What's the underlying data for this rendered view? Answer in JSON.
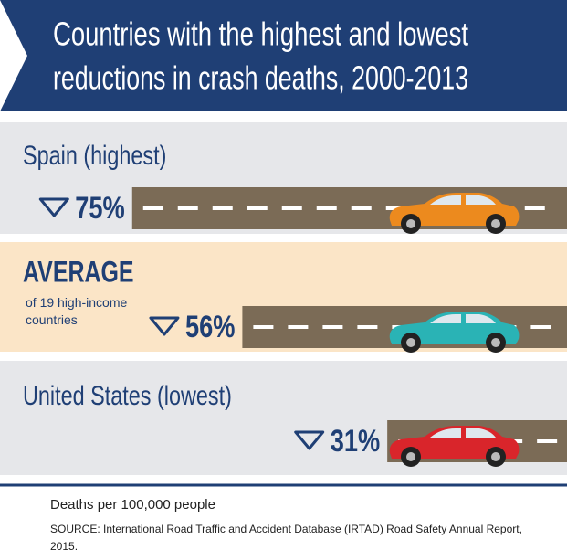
{
  "chart_data": {
    "type": "bar",
    "title_lines": [
      "Countries with the highest and lowest",
      "reductions in crash deaths, 2000-2013"
    ],
    "categories": [
      "Spain (highest)",
      "AVERAGE",
      "United States (lowest)"
    ],
    "category_note": "of 19 high-income countries",
    "values": [
      75,
      56,
      31
    ],
    "value_labels": [
      "75%",
      "56%",
      "31%"
    ],
    "colors": [
      "#ec8a1e",
      "#2ab3b5",
      "#d9252b"
    ],
    "road_color": "#7b6b56",
    "unit_label": "Deaths per 100,000 people",
    "source": "SOURCE: International Road Traffic and Accident Database (IRTAD) Road Safety Annual Report, 2015."
  }
}
